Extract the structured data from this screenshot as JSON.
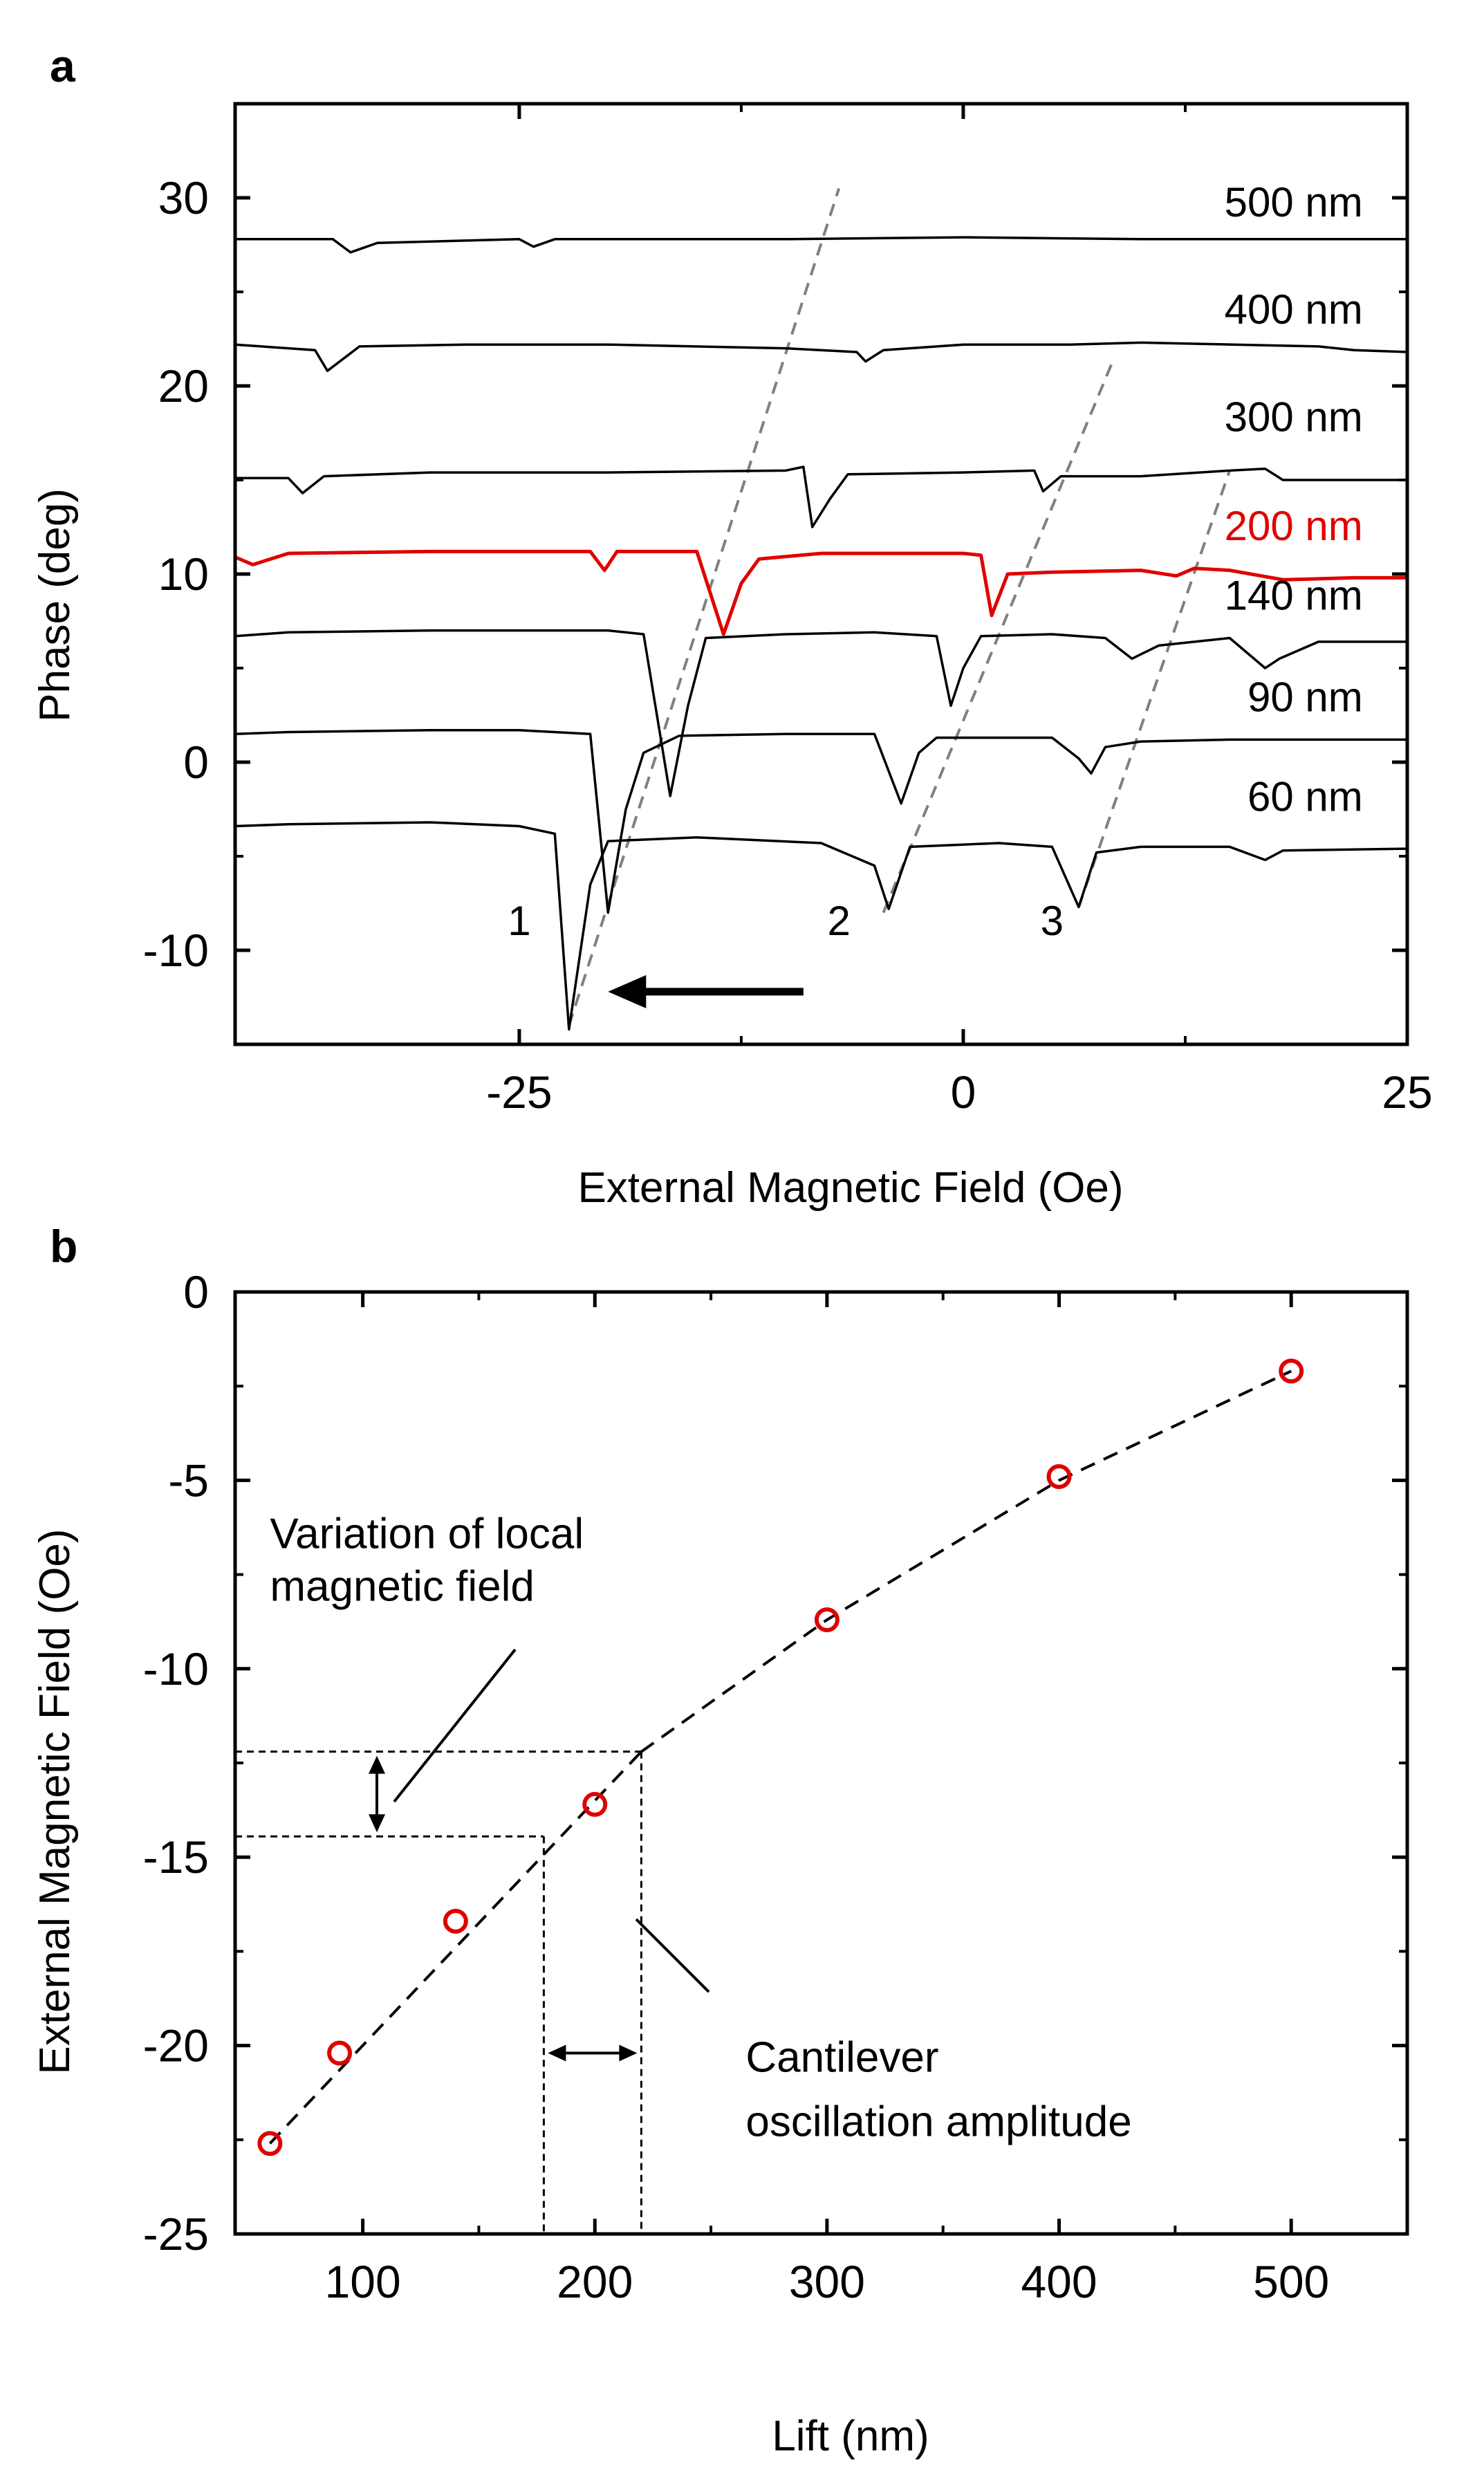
{
  "chart_data": [
    {
      "panel": "a",
      "type": "line",
      "xlabel": "External Magnetic Field (Oe)",
      "ylabel": "Phase (deg)",
      "xlim": [
        -41,
        25
      ],
      "ylim": [
        -15,
        35
      ],
      "xticks": [
        -25,
        0,
        25
      ],
      "xtick_labels": [
        "-25",
        "0",
        "25"
      ],
      "yticks": [
        -10,
        0,
        10,
        20,
        30
      ],
      "ytick_labels": [
        "-10",
        "0",
        "10",
        "20",
        "30"
      ],
      "highlight_color": "#e00000",
      "series": [
        {
          "name": "500 nm",
          "label": "500 nm",
          "color": "#000000",
          "label_pos": [
            22.5,
            29.0
          ],
          "points": [
            [
              -41,
              27.8
            ],
            [
              -38,
              27.8
            ],
            [
              -35.5,
              27.8
            ],
            [
              -34.5,
              27.1
            ],
            [
              -33,
              27.6
            ],
            [
              -25,
              27.8
            ],
            [
              -24.2,
              27.4
            ],
            [
              -23,
              27.8
            ],
            [
              -10,
              27.8
            ],
            [
              0,
              27.9
            ],
            [
              10,
              27.8
            ],
            [
              20,
              27.8
            ],
            [
              25,
              27.8
            ]
          ]
        },
        {
          "name": "400 nm",
          "label": "400 nm",
          "color": "#000000",
          "label_pos": [
            22.5,
            23.3
          ],
          "points": [
            [
              -41,
              22.2
            ],
            [
              -38,
              22.0
            ],
            [
              -36.5,
              21.9
            ],
            [
              -35.8,
              20.8
            ],
            [
              -34,
              22.1
            ],
            [
              -28,
              22.2
            ],
            [
              -20,
              22.2
            ],
            [
              -10,
              22.0
            ],
            [
              -6,
              21.8
            ],
            [
              -5.5,
              21.3
            ],
            [
              -4.5,
              21.9
            ],
            [
              0,
              22.2
            ],
            [
              6,
              22.2
            ],
            [
              10,
              22.3
            ],
            [
              20,
              22.1
            ],
            [
              22,
              21.9
            ],
            [
              25,
              21.8
            ]
          ]
        },
        {
          "name": "300 nm",
          "label": "300 nm",
          "color": "#000000",
          "label_pos": [
            22.5,
            17.6
          ],
          "points": [
            [
              -41,
              15.1
            ],
            [
              -38,
              15.1
            ],
            [
              -37.2,
              14.3
            ],
            [
              -36,
              15.2
            ],
            [
              -30,
              15.4
            ],
            [
              -20,
              15.4
            ],
            [
              -10,
              15.5
            ],
            [
              -9,
              15.7
            ],
            [
              -8.5,
              12.5
            ],
            [
              -7.5,
              14.0
            ],
            [
              -6.5,
              15.3
            ],
            [
              0,
              15.4
            ],
            [
              4,
              15.5
            ],
            [
              4.5,
              14.4
            ],
            [
              5.5,
              15.2
            ],
            [
              10,
              15.2
            ],
            [
              15,
              15.5
            ],
            [
              17,
              15.6
            ],
            [
              18,
              15.0
            ],
            [
              20,
              15.0
            ],
            [
              25,
              15.0
            ]
          ]
        },
        {
          "name": "200 nm",
          "label": "200 nm",
          "color": "#e00000",
          "label_pos": [
            22.5,
            11.8
          ],
          "points": [
            [
              -41,
              10.9
            ],
            [
              -40,
              10.5
            ],
            [
              -38,
              11.1
            ],
            [
              -30,
              11.2
            ],
            [
              -21,
              11.2
            ],
            [
              -20.2,
              10.2
            ],
            [
              -19.5,
              11.2
            ],
            [
              -15,
              11.2
            ],
            [
              -13.5,
              6.8
            ],
            [
              -12.5,
              9.5
            ],
            [
              -11.5,
              10.8
            ],
            [
              -8,
              11.1
            ],
            [
              0,
              11.1
            ],
            [
              1,
              11.0
            ],
            [
              1.6,
              7.8
            ],
            [
              2.5,
              10.0
            ],
            [
              5,
              10.1
            ],
            [
              10,
              10.2
            ],
            [
              12,
              9.9
            ],
            [
              13,
              10.3
            ],
            [
              15,
              10.2
            ],
            [
              18,
              9.7
            ],
            [
              22,
              9.8
            ],
            [
              25,
              9.8
            ]
          ]
        },
        {
          "name": "140 nm",
          "label": "140 nm",
          "color": "#000000",
          "label_pos": [
            22.5,
            8.1
          ],
          "points": [
            [
              -41,
              6.7
            ],
            [
              -38,
              6.9
            ],
            [
              -30,
              7.0
            ],
            [
              -20,
              7.0
            ],
            [
              -18,
              6.8
            ],
            [
              -16.5,
              -1.8
            ],
            [
              -15.5,
              3.0
            ],
            [
              -14.5,
              6.6
            ],
            [
              -10,
              6.8
            ],
            [
              -5,
              6.9
            ],
            [
              -1.5,
              6.7
            ],
            [
              -0.7,
              3.0
            ],
            [
              0,
              5.0
            ],
            [
              1,
              6.7
            ],
            [
              5,
              6.8
            ],
            [
              8,
              6.6
            ],
            [
              9.5,
              5.5
            ],
            [
              11,
              6.2
            ],
            [
              15,
              6.6
            ],
            [
              17,
              5.0
            ],
            [
              17.8,
              5.5
            ],
            [
              20,
              6.4
            ],
            [
              25,
              6.4
            ]
          ]
        },
        {
          "name": "90 nm",
          "label": "90 nm",
          "color": "#000000",
          "label_pos": [
            22.5,
            2.7
          ],
          "points": [
            [
              -41,
              1.5
            ],
            [
              -38,
              1.6
            ],
            [
              -30,
              1.7
            ],
            [
              -25,
              1.7
            ],
            [
              -21,
              1.5
            ],
            [
              -20,
              -8.0
            ],
            [
              -19,
              -2.5
            ],
            [
              -18,
              0.5
            ],
            [
              -16,
              1.4
            ],
            [
              -10,
              1.5
            ],
            [
              -5,
              1.5
            ],
            [
              -3.5,
              -2.2
            ],
            [
              -2.5,
              0.5
            ],
            [
              -1.5,
              1.3
            ],
            [
              5,
              1.3
            ],
            [
              6.5,
              0.2
            ],
            [
              7.2,
              -0.6
            ],
            [
              8,
              0.8
            ],
            [
              10,
              1.1
            ],
            [
              15,
              1.2
            ],
            [
              20,
              1.2
            ],
            [
              25,
              1.2
            ]
          ]
        },
        {
          "name": "60 nm",
          "label": "60 nm",
          "color": "#000000",
          "label_pos": [
            22.5,
            -2.6
          ],
          "points": [
            [
              -41,
              -3.4
            ],
            [
              -38,
              -3.3
            ],
            [
              -30,
              -3.2
            ],
            [
              -25,
              -3.4
            ],
            [
              -23,
              -3.8
            ],
            [
              -22.2,
              -14.2
            ],
            [
              -21,
              -6.5
            ],
            [
              -20,
              -4.2
            ],
            [
              -15,
              -4.0
            ],
            [
              -8,
              -4.3
            ],
            [
              -5,
              -5.5
            ],
            [
              -4.2,
              -7.8
            ],
            [
              -3,
              -4.5
            ],
            [
              2,
              -4.3
            ],
            [
              5,
              -4.5
            ],
            [
              6.5,
              -7.7
            ],
            [
              7.5,
              -4.8
            ],
            [
              10,
              -4.5
            ],
            [
              15,
              -4.5
            ],
            [
              17,
              -5.2
            ],
            [
              18,
              -4.7
            ],
            [
              25,
              -4.6
            ]
          ]
        }
      ],
      "guide_lines": [
        {
          "from": [
            -22.2,
            -14.0
          ],
          "to": [
            -7.0,
            30.5
          ]
        },
        {
          "from": [
            -4.5,
            -8.0
          ],
          "to": [
            8.5,
            21.5
          ]
        },
        {
          "from": [
            6.5,
            -7.7
          ],
          "to": [
            15.0,
            15.5
          ]
        }
      ],
      "annotations": [
        {
          "text": "1",
          "x": -25,
          "y": -9.2
        },
        {
          "text": "2",
          "x": -7.0,
          "y": -9.2
        },
        {
          "text": "3",
          "x": 5.0,
          "y": -9.2
        }
      ],
      "arrow": {
        "from": [
          -9.0,
          -12.2
        ],
        "to": [
          -20.0,
          -12.2
        ],
        "direction": "left"
      }
    },
    {
      "panel": "b",
      "type": "scatter",
      "xlabel": "Lift (nm)",
      "ylabel": "External Magnetic Field (Oe)",
      "xlim": [
        45,
        550
      ],
      "ylim": [
        -25,
        0
      ],
      "xticks": [
        100,
        200,
        300,
        400,
        500
      ],
      "xtick_labels": [
        "100",
        "200",
        "300",
        "400",
        "500"
      ],
      "yticks": [
        -25,
        -20,
        -15,
        -10,
        -5,
        0
      ],
      "ytick_labels": [
        "-25",
        "-20",
        "-15",
        "-10",
        "-5",
        "0"
      ],
      "marker_color": "#e00000",
      "x": [
        60,
        90,
        140,
        200,
        300,
        400,
        500
      ],
      "y": [
        -22.6,
        -20.2,
        -16.7,
        -13.6,
        -8.7,
        -4.9,
        -2.1
      ],
      "fit_lines": [
        {
          "style": "dashed",
          "points": [
            [
              60,
              -22.6
            ],
            [
              220,
              -12.2
            ]
          ]
        },
        {
          "style": "dashed",
          "points": [
            [
              220,
              -12.2
            ],
            [
              300,
              -8.7
            ],
            [
              400,
              -5.0
            ],
            [
              500,
              -2.1
            ]
          ]
        }
      ],
      "guide_lines": [
        {
          "from": [
            45,
            -12.2
          ],
          "to": [
            220,
            -12.2
          ]
        },
        {
          "from": [
            45,
            -14.45
          ],
          "to": [
            178,
            -14.45
          ]
        },
        {
          "from": [
            178,
            -14.45
          ],
          "to": [
            178,
            -25
          ]
        },
        {
          "from": [
            220,
            -12.2
          ],
          "to": [
            220,
            -25
          ]
        }
      ],
      "annotations": [
        {
          "text": "Variation of local",
          "x": 60,
          "y": -6.8
        },
        {
          "text": "magnetic field",
          "x": 60,
          "y": -8.2
        },
        {
          "text": "Cantilever",
          "x": 265,
          "y": -20.7
        },
        {
          "text": "oscillation amplitude",
          "x": 265,
          "y": -22.4
        }
      ]
    }
  ]
}
